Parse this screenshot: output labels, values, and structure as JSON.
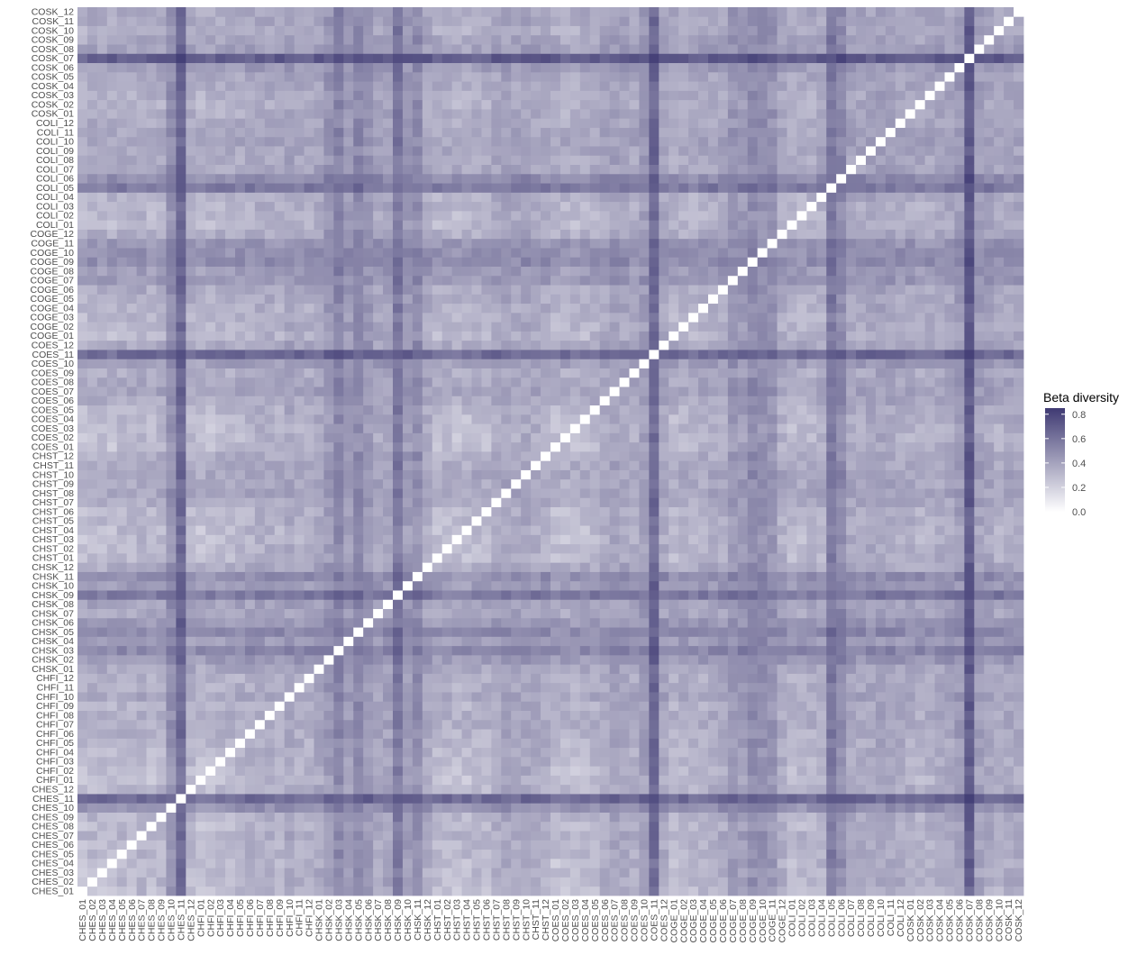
{
  "chart_data": {
    "type": "heatmap",
    "title": "",
    "xlabel": "",
    "ylabel": "",
    "samples": [
      "CHES_01",
      "CHES_02",
      "CHES_03",
      "CHES_04",
      "CHES_05",
      "CHES_06",
      "CHES_07",
      "CHES_08",
      "CHES_09",
      "CHES_10",
      "CHES_11",
      "CHES_12",
      "CHFI_01",
      "CHFI_02",
      "CHFI_03",
      "CHFI_04",
      "CHFI_05",
      "CHFI_06",
      "CHFI_07",
      "CHFI_08",
      "CHFI_09",
      "CHFI_10",
      "CHFI_11",
      "CHFI_12",
      "CHSK_01",
      "CHSK_02",
      "CHSK_03",
      "CHSK_04",
      "CHSK_05",
      "CHSK_06",
      "CHSK_07",
      "CHSK_08",
      "CHSK_09",
      "CHSK_10",
      "CHSK_11",
      "CHSK_12",
      "CHST_01",
      "CHST_02",
      "CHST_03",
      "CHST_04",
      "CHST_05",
      "CHST_06",
      "CHST_07",
      "CHST_08",
      "CHST_09",
      "CHST_10",
      "CHST_11",
      "CHST_12",
      "COES_01",
      "COES_02",
      "COES_03",
      "COES_04",
      "COES_05",
      "COES_06",
      "COES_07",
      "COES_08",
      "COES_09",
      "COES_10",
      "COES_11",
      "COES_12",
      "COGE_01",
      "COGE_02",
      "COGE_03",
      "COGE_04",
      "COGE_05",
      "COGE_06",
      "COGE_07",
      "COGE_08",
      "COGE_09",
      "COGE_10",
      "COGE_11",
      "COGE_12",
      "COLI_01",
      "COLI_02",
      "COLI_03",
      "COLI_04",
      "COLI_05",
      "COLI_06",
      "COLI_07",
      "COLI_08",
      "COLI_09",
      "COLI_10",
      "COLI_11",
      "COLI_12",
      "COSK_01",
      "COSK_02",
      "COSK_03",
      "COSK_04",
      "COSK_05",
      "COSK_06",
      "COSK_07",
      "COSK_08",
      "COSK_09",
      "COSK_10",
      "COSK_11",
      "COSK_12"
    ],
    "diagonal_value": 0.0,
    "sample_dissimilarity": {
      "CHES_01": 0.22,
      "CHES_02": 0.3,
      "CHES_03": 0.28,
      "CHES_04": 0.26,
      "CHES_05": 0.32,
      "CHES_06": 0.3,
      "CHES_07": 0.34,
      "CHES_08": 0.28,
      "CHES_09": 0.32,
      "CHES_10": 0.52,
      "CHES_11": 0.74,
      "CHES_12": 0.3,
      "CHFI_01": 0.22,
      "CHFI_02": 0.26,
      "CHFI_03": 0.3,
      "CHFI_04": 0.3,
      "CHFI_05": 0.32,
      "CHFI_06": 0.34,
      "CHFI_07": 0.36,
      "CHFI_08": 0.36,
      "CHFI_09": 0.34,
      "CHFI_10": 0.4,
      "CHFI_11": 0.36,
      "CHFI_12": 0.34,
      "CHSK_01": 0.4,
      "CHSK_02": 0.48,
      "CHSK_03": 0.58,
      "CHSK_04": 0.46,
      "CHSK_05": 0.56,
      "CHSK_06": 0.48,
      "CHSK_07": 0.4,
      "CHSK_08": 0.42,
      "CHSK_09": 0.66,
      "CHSK_10": 0.46,
      "CHSK_11": 0.54,
      "CHSK_12": 0.38,
      "CHST_01": 0.28,
      "CHST_02": 0.28,
      "CHST_03": 0.24,
      "CHST_04": 0.26,
      "CHST_05": 0.3,
      "CHST_06": 0.28,
      "CHST_07": 0.36,
      "CHST_08": 0.4,
      "CHST_09": 0.38,
      "CHST_10": 0.4,
      "CHST_11": 0.38,
      "CHST_12": 0.36,
      "COES_01": 0.26,
      "COES_02": 0.26,
      "COES_03": 0.26,
      "COES_04": 0.28,
      "COES_05": 0.32,
      "COES_06": 0.38,
      "COES_07": 0.42,
      "COES_08": 0.4,
      "COES_09": 0.36,
      "COES_10": 0.46,
      "COES_11": 0.74,
      "COES_12": 0.4,
      "COGE_01": 0.3,
      "COGE_02": 0.32,
      "COGE_03": 0.32,
      "COGE_04": 0.34,
      "COGE_05": 0.36,
      "COGE_06": 0.38,
      "COGE_07": 0.48,
      "COGE_08": 0.46,
      "COGE_09": 0.54,
      "COGE_10": 0.52,
      "COGE_11": 0.5,
      "COGE_12": 0.36,
      "COLI_01": 0.3,
      "COLI_02": 0.3,
      "COLI_03": 0.32,
      "COLI_04": 0.34,
      "COLI_05": 0.66,
      "COLI_06": 0.56,
      "COLI_07": 0.4,
      "COLI_08": 0.38,
      "COLI_09": 0.4,
      "COLI_10": 0.42,
      "COLI_11": 0.4,
      "COLI_12": 0.38,
      "COSK_01": 0.36,
      "COSK_02": 0.34,
      "COSK_03": 0.36,
      "COSK_04": 0.38,
      "COSK_05": 0.4,
      "COSK_06": 0.46,
      "COSK_07": 0.82,
      "COSK_08": 0.44,
      "COSK_09": 0.4,
      "COSK_10": 0.36,
      "COSK_11": 0.38,
      "COSK_12": 0.4
    },
    "value_range": [
      0,
      0.85
    ],
    "colorscale": {
      "low": "#ffffff",
      "high": "#3f3a73"
    },
    "legend": {
      "title": "Beta diversity",
      "placement": "right",
      "ticks": [
        0.8,
        0.6,
        0.4,
        0.2,
        0.0
      ],
      "tick_labels": [
        "0.8",
        "0.6",
        "0.4",
        "0.2",
        "0.0"
      ]
    }
  }
}
